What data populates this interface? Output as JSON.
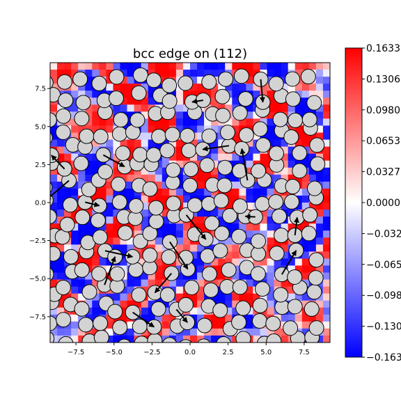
{
  "chart_data": {
    "type": "heatmap",
    "title": "bcc edge on (112)",
    "xlabel": "",
    "ylabel": "",
    "xlim": [
      -9.2,
      9.2
    ],
    "ylim": [
      -9.2,
      9.2
    ],
    "xticks": [
      -7.5,
      -5.0,
      -2.5,
      0.0,
      2.5,
      5.0,
      7.5
    ],
    "xtick_labels": [
      "−7.5",
      "−5.0",
      "−2.5",
      "0.0",
      "2.5",
      "5.0",
      "7.5"
    ],
    "yticks": [
      -7.5,
      -5.0,
      -2.5,
      0.0,
      2.5,
      5.0,
      7.5
    ],
    "ytick_labels": [
      "−7.5",
      "−5.0",
      "−2.5",
      "0.0",
      "2.5",
      "5.0",
      "7.5"
    ],
    "colorbar": {
      "colormap": "bwr",
      "vmin": -0.1633,
      "vmax": 0.1633,
      "ticks": [
        0.1633,
        0.1306,
        0.098,
        0.0653,
        0.0327,
        0.0,
        -0.0327,
        -0.0653,
        -0.098,
        -0.1306,
        -0.1633
      ],
      "tick_labels": [
        "0.1633",
        "0.1306",
        "0.0980",
        "0.0653",
        "0.0327",
        "0.0000",
        "−0.0327",
        "−0.0653",
        "−0.0980",
        "−0.1306",
        "−0.1633"
      ]
    },
    "grid": false,
    "atom_marker_color": "#d3d3d3",
    "arrow_color": "#000000",
    "positive_color": "#ff0000",
    "negative_color": "#0000ff"
  }
}
